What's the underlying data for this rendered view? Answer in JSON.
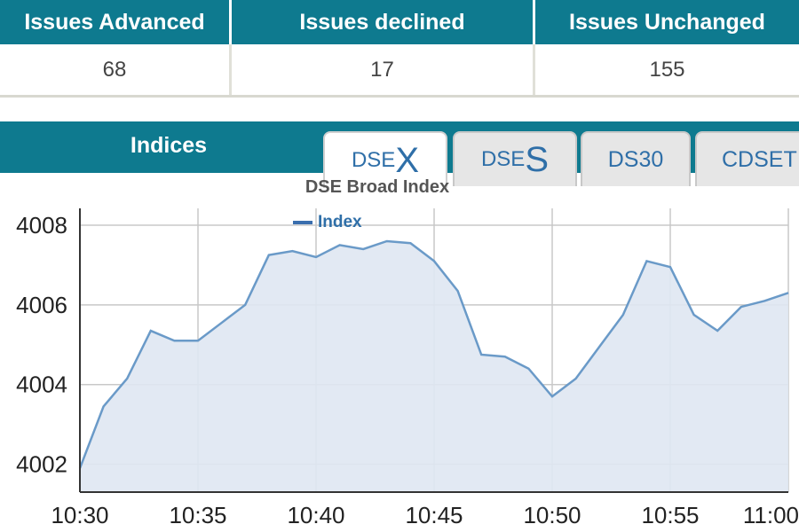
{
  "issues": {
    "headers": [
      "Issues Advanced",
      "Issues declined",
      "Issues Unchanged"
    ],
    "values": [
      "68",
      "17",
      "155"
    ]
  },
  "indices": {
    "label": "Indices",
    "tabs": [
      {
        "prefix": "DSE",
        "suffix": "X",
        "active": true
      },
      {
        "prefix": "DSE",
        "suffix": "S",
        "active": false
      },
      {
        "label": "DS30",
        "active": false
      },
      {
        "label": "CDSET",
        "active": false
      }
    ]
  },
  "colors": {
    "header_bg": "#0e7a8f",
    "line": "#6a9ac8",
    "fill": "#dfe7f2",
    "tab_text": "#2f6fa8"
  },
  "chart_data": {
    "type": "area",
    "title": "DSE Broad Index",
    "legend": "Index",
    "legend_position": "top-left",
    "grid": true,
    "ylim": [
      4001.3,
      4008.2
    ],
    "yticks": [
      4002,
      4004,
      4006,
      4008
    ],
    "xticks": [
      "10:30",
      "10:35",
      "10:40",
      "10:45",
      "10:50",
      "10:55",
      "11:00"
    ],
    "x_minutes": [
      0,
      1,
      2,
      3,
      4,
      5,
      6,
      7,
      8,
      9,
      10,
      11,
      12,
      13,
      14,
      15,
      16,
      17,
      18,
      19,
      20,
      21,
      22,
      23,
      24,
      25,
      26,
      27,
      28,
      29,
      30
    ],
    "series": [
      {
        "name": "Index",
        "values": [
          4001.9,
          4003.45,
          4004.15,
          4005.35,
          4005.1,
          4005.1,
          4005.55,
          4006.0,
          4007.25,
          4007.35,
          4007.2,
          4007.5,
          4007.4,
          4007.6,
          4007.55,
          4007.1,
          4006.35,
          4004.75,
          4004.7,
          4004.4,
          4003.7,
          4004.15,
          4004.95,
          4005.75,
          4007.1,
          4006.95,
          4005.75,
          4005.35,
          4005.95,
          4006.1,
          4006.3
        ]
      }
    ]
  }
}
